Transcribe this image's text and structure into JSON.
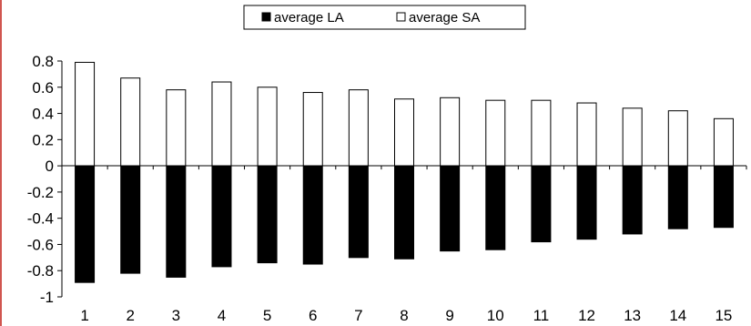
{
  "chart_data": {
    "type": "bar",
    "categories": [
      "1",
      "2",
      "3",
      "4",
      "5",
      "6",
      "7",
      "8",
      "9",
      "10",
      "11",
      "12",
      "13",
      "14",
      "15"
    ],
    "series": [
      {
        "name": "average LA",
        "color": "#000000",
        "values": [
          -0.89,
          -0.82,
          -0.85,
          -0.77,
          -0.74,
          -0.75,
          -0.7,
          -0.71,
          -0.65,
          -0.64,
          -0.58,
          -0.56,
          -0.52,
          -0.48,
          -0.47
        ]
      },
      {
        "name": "average SA",
        "color": "#ffffff",
        "values": [
          0.79,
          0.67,
          0.58,
          0.64,
          0.6,
          0.56,
          0.58,
          0.51,
          0.52,
          0.5,
          0.5,
          0.48,
          0.44,
          0.42,
          0.36
        ]
      }
    ],
    "yticks": [
      "0.8",
      "0.6",
      "0.4",
      "0.2",
      "0",
      "-0.2",
      "-0.4",
      "-0.6",
      "-0.8",
      "-1"
    ],
    "ylim": [
      -1,
      0.8
    ],
    "legend_position": "top-center",
    "grid": false,
    "accent_border_color": "#d0554f"
  }
}
